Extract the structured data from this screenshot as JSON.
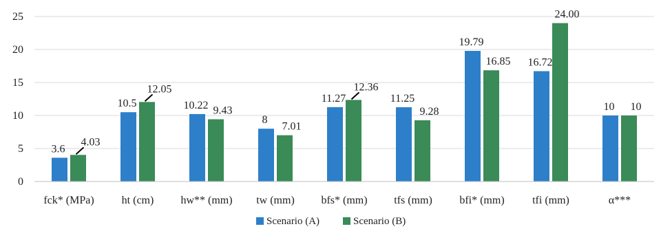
{
  "chart_data": {
    "type": "bar",
    "categories": [
      "fck* (MPa)",
      "ht (cm)",
      "hw** (mm)",
      "tw (mm)",
      "bfs* (mm)",
      "tfs (mm)",
      "bfi* (mm)",
      "tfi (mm)",
      "α***"
    ],
    "series": [
      {
        "name": "Scenario (A)",
        "color": "#2e7fc9",
        "values": [
          3.6,
          10.5,
          10.22,
          8,
          11.27,
          11.25,
          19.79,
          16.72,
          10
        ],
        "labels": [
          "3.6",
          "10.5",
          "10.22",
          "8",
          "11.27",
          "11.25",
          "19.79",
          "16.72",
          "10"
        ]
      },
      {
        "name": "Scenario (B)",
        "color": "#3a8b57",
        "values": [
          4.03,
          12.05,
          9.43,
          7.01,
          12.36,
          9.28,
          16.85,
          24.0,
          10
        ],
        "labels": [
          "4.03",
          "12.05",
          "9.43",
          "7.01",
          "12.36",
          "9.28",
          "16.85",
          "24.00",
          "10"
        ]
      }
    ],
    "y_ticks": [
      "0",
      "5",
      "10",
      "15",
      "20",
      "25"
    ],
    "ylim": [
      0,
      25
    ],
    "grid": true,
    "legend_position": "bottom"
  }
}
